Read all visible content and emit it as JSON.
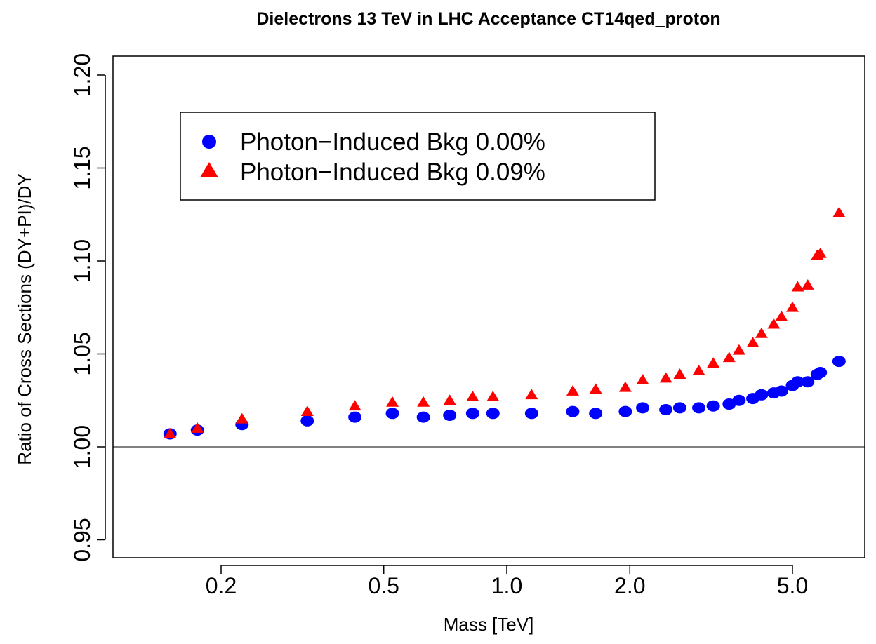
{
  "chart_data": {
    "type": "scatter",
    "title": "Dielectrons 13 TeV in LHC Acceptance CT14qed_proton",
    "xlabel": "Mass [TeV]",
    "ylabel": "Ratio of Cross Sections (DY+PI)/DY",
    "x_scale": "log",
    "xlim": [
      0.105,
      7.1
    ],
    "ylim": [
      0.94,
      1.2
    ],
    "x_ticks": [
      0.2,
      0.5,
      1.0,
      2.0,
      5.0
    ],
    "x_tick_labels": [
      "0.2",
      "0.5",
      "1.0",
      "2.0",
      "5.0"
    ],
    "y_ticks": [
      0.95,
      1.0,
      1.05,
      1.1,
      1.15,
      1.2
    ],
    "y_tick_labels": [
      "0.95",
      "1.00",
      "1.05",
      "1.10",
      "1.15",
      "1.20"
    ],
    "reference_line": 1.0,
    "legend_position": "top-left",
    "series": [
      {
        "name": "Photon−Induced Bkg 0.00%",
        "marker": "circle",
        "color": "#0000ff",
        "x": [
          0.15,
          0.175,
          0.225,
          0.325,
          0.425,
          0.525,
          0.625,
          0.725,
          0.825,
          0.925,
          1.15,
          1.45,
          1.65,
          1.95,
          2.15,
          2.45,
          2.65,
          2.95,
          3.2,
          3.5,
          3.7,
          4.0,
          4.2,
          4.5,
          4.7,
          5.0,
          5.15,
          5.45,
          5.75,
          5.85,
          6.5
        ],
        "y": [
          1.007,
          1.009,
          1.012,
          1.014,
          1.016,
          1.018,
          1.016,
          1.017,
          1.018,
          1.018,
          1.018,
          1.019,
          1.018,
          1.019,
          1.021,
          1.02,
          1.021,
          1.021,
          1.022,
          1.023,
          1.025,
          1.026,
          1.028,
          1.029,
          1.03,
          1.033,
          1.035,
          1.035,
          1.039,
          1.04,
          1.046
        ]
      },
      {
        "name": "Photon−Induced Bkg 0.09%",
        "marker": "triangle",
        "color": "#ff0000",
        "x": [
          0.15,
          0.175,
          0.225,
          0.325,
          0.425,
          0.525,
          0.625,
          0.725,
          0.825,
          0.925,
          1.15,
          1.45,
          1.65,
          1.95,
          2.15,
          2.45,
          2.65,
          2.95,
          3.2,
          3.5,
          3.7,
          4.0,
          4.2,
          4.5,
          4.7,
          5.0,
          5.15,
          5.45,
          5.75,
          5.85,
          6.5
        ],
        "y": [
          1.007,
          1.01,
          1.015,
          1.019,
          1.022,
          1.024,
          1.024,
          1.025,
          1.027,
          1.027,
          1.028,
          1.03,
          1.031,
          1.032,
          1.036,
          1.037,
          1.039,
          1.041,
          1.045,
          1.048,
          1.052,
          1.056,
          1.061,
          1.066,
          1.07,
          1.075,
          1.086,
          1.087,
          1.103,
          1.104,
          1.126
        ]
      }
    ]
  }
}
